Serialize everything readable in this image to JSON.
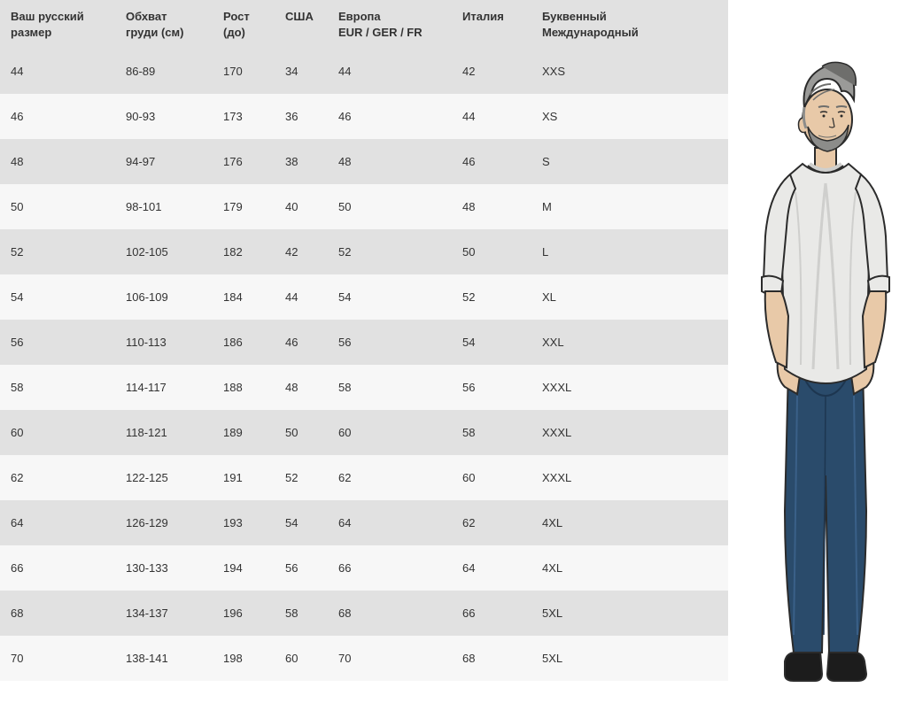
{
  "table": {
    "columns": [
      {
        "l1": "Ваш русский",
        "l2": "размер"
      },
      {
        "l1": "Обхват",
        "l2": "груди (см)"
      },
      {
        "l1": "Рост",
        "l2": "(до)"
      },
      {
        "l1": "США",
        "l2": ""
      },
      {
        "l1": "Европа",
        "l2": "EUR / GER / FR"
      },
      {
        "l1": "Италия",
        "l2": ""
      },
      {
        "l1": "Буквенный",
        "l2": "Международный"
      }
    ],
    "col_classes": [
      "col0",
      "col1",
      "col2",
      "col3",
      "col4",
      "col5",
      "col6"
    ],
    "rows": [
      [
        "44",
        "86-89",
        "170",
        "34",
        "44",
        "42",
        "XXS"
      ],
      [
        "46",
        "90-93",
        "173",
        "36",
        "46",
        "44",
        "XS"
      ],
      [
        "48",
        "94-97",
        "176",
        "38",
        "48",
        "46",
        "S"
      ],
      [
        "50",
        "98-101",
        "179",
        "40",
        "50",
        "48",
        "M"
      ],
      [
        "52",
        "102-105",
        "182",
        "42",
        "52",
        "50",
        "L"
      ],
      [
        "54",
        "106-109",
        "184",
        "44",
        "54",
        "52",
        "XL"
      ],
      [
        "56",
        "110-113",
        "186",
        "46",
        "56",
        "54",
        "XXL"
      ],
      [
        "58",
        "114-117",
        "188",
        "48",
        "58",
        "56",
        "XXXL"
      ],
      [
        "60",
        "118-121",
        "189",
        "50",
        "60",
        "58",
        "XXXL"
      ],
      [
        "62",
        "122-125",
        "191",
        "52",
        "62",
        "60",
        "XXXL"
      ],
      [
        "64",
        "126-129",
        "193",
        "54",
        "64",
        "62",
        "4XL"
      ],
      [
        "66",
        "130-133",
        "194",
        "56",
        "66",
        "64",
        "4XL"
      ],
      [
        "68",
        "134-137",
        "196",
        "58",
        "68",
        "66",
        "5XL"
      ],
      [
        "70",
        "138-141",
        "198",
        "60",
        "70",
        "68",
        "5XL"
      ]
    ]
  },
  "figure": {
    "name": "male-model-illustration",
    "colors": {
      "hair": "#9a9a98",
      "hair_dark": "#6e6e6c",
      "skin": "#e8c9a8",
      "skin_shadow": "#d7b592",
      "beard": "#8c8c8a",
      "shirt": "#e9e9e7",
      "shirt_shadow": "#cfcfcd",
      "jeans": "#2a4b6b",
      "jeans_light": "#3a6088",
      "boots": "#1c1c1c",
      "outline": "#2b2b2b"
    }
  },
  "style": {
    "header_bg": "#e1e1e1",
    "row_odd_bg": "#e1e1e1",
    "row_even_bg": "#f7f7f7",
    "text_color": "#333333",
    "font_size_pt": 10
  }
}
